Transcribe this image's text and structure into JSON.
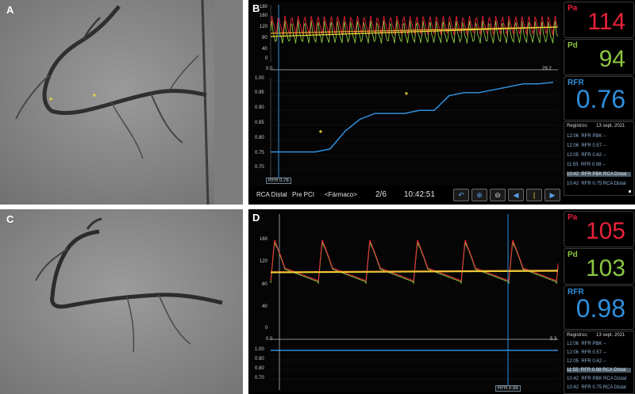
{
  "panel_labels": {
    "a": "A",
    "b": "B",
    "c": "C",
    "d": "D"
  },
  "colors": {
    "pa": "#e8213a",
    "pd": "#8cc63f",
    "rfr": "#2f8fdc",
    "fmt": "#f2e03a"
  },
  "panel_b": {
    "pa_label": "Pa",
    "pa_value": "114",
    "pd_label": "Pd",
    "pd_value": "94",
    "rfr_label": "RFR",
    "rfr_value": "0.76",
    "pressure_ticks": [
      "180",
      "160",
      "120",
      "80",
      "40",
      "0"
    ],
    "rfr_ticks": [
      "1.00",
      "0.95",
      "0.90",
      "0.85",
      "0.80",
      "0.75",
      "0.70"
    ],
    "time_start": "0.0",
    "time_end": "29.2",
    "cursor_label": "RFR 0.76",
    "status": {
      "vessel": "RCA Distal",
      "stage": "Pre PCI",
      "drug": "<Fármaco>",
      "page": "2/6",
      "clock": "10:42:51"
    },
    "log": {
      "header_left": "Registros:",
      "header_right": "13 sept. 2021",
      "rows": [
        {
          "time": "12:06",
          "text": "RFR  PBK  --"
        },
        {
          "time": "12:06",
          "text": "RFR  0.57  --"
        },
        {
          "time": "12:05",
          "text": "RFR  0.62  --"
        },
        {
          "time": "11:55",
          "text": "RFR  0.98  --"
        },
        {
          "time": "10:42",
          "text": "RFR  PBK  RCA Distal"
        },
        {
          "time": "10:42",
          "text": "RFR  0.75  RCA Distal"
        }
      ]
    },
    "rfr_trend": [
      0.76,
      0.76,
      0.76,
      0.76,
      0.77,
      0.83,
      0.87,
      0.89,
      0.89,
      0.89,
      0.9,
      0.9,
      0.95,
      0.96,
      0.96,
      0.97,
      0.98,
      0.99,
      0.99,
      0.995
    ]
  },
  "panel_d": {
    "pa_label": "Pa",
    "pa_value": "105",
    "pd_label": "Pd",
    "pd_value": "103",
    "rfr_label": "RFR",
    "rfr_value": "0.98",
    "pressure_ticks": [
      "160",
      "120",
      "80",
      "40",
      "0"
    ],
    "rfr_ticks": [
      "1.00",
      "0.90",
      "0.80",
      "0.70"
    ],
    "time_start": "0.0",
    "time_end": "5.3",
    "cursor_label": "RFR 0.98",
    "log": {
      "header_left": "Registros:",
      "header_right": "13 sept. 2021",
      "rows": [
        {
          "time": "12:06",
          "text": "RFR  PBK  --"
        },
        {
          "time": "12:06",
          "text": "RFR  0.57  --"
        },
        {
          "time": "12:05",
          "text": "RFR  0.62  --"
        },
        {
          "time": "11:55",
          "text": "RFR  0.98  RCA Distal"
        },
        {
          "time": "10:42",
          "text": "RFR  PBK  RCA Distal"
        },
        {
          "time": "10:42",
          "text": "RFR  0.75  RCA Distal"
        }
      ]
    }
  }
}
